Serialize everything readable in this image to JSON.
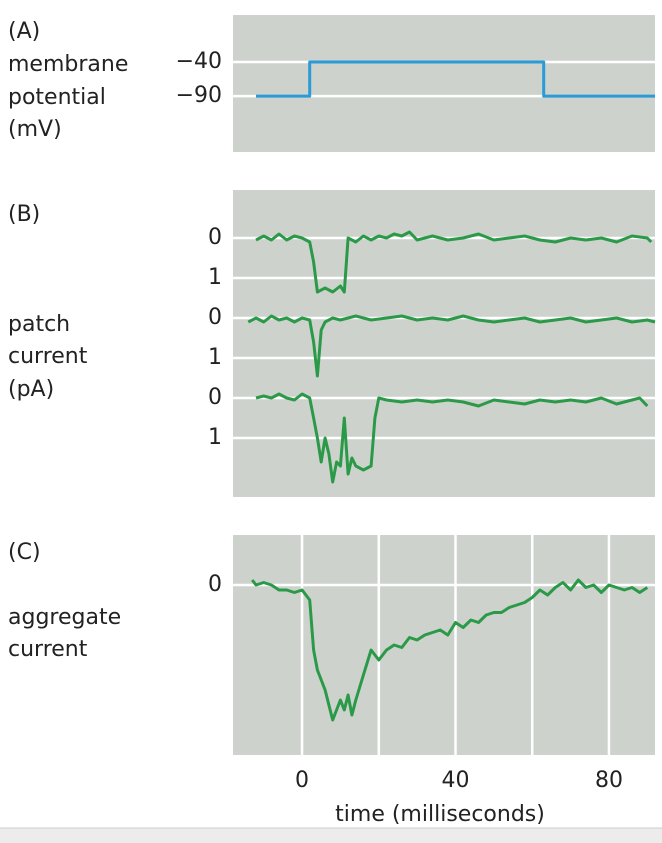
{
  "chart_data": [
    {
      "type": "line",
      "panel": "(A)",
      "ylabel": [
        "membrane",
        "potential",
        "(mV)"
      ],
      "xlim": [
        -18,
        92
      ],
      "ylim": [
        -172,
        29
      ],
      "yticks": [
        {
          "value": -40,
          "label": "−40"
        },
        {
          "value": -90,
          "label": "−90"
        }
      ],
      "grid": true,
      "series": [
        {
          "color": "#2a9bd6",
          "x": [
            -12,
            2,
            2,
            63,
            63,
            92
          ],
          "values": [
            -90,
            -90,
            -40,
            -40,
            -90,
            -90
          ]
        }
      ]
    },
    {
      "type": "line",
      "panel": "(B)",
      "ylabel": [
        "patch",
        "current",
        "(pA)"
      ],
      "xlim": [
        -18,
        92
      ],
      "y_inverted": true,
      "grid": true,
      "series": [
        {
          "color": "#2b9a48",
          "ylim": [
            -1.2,
            1.5
          ],
          "yticks": [
            0,
            1
          ],
          "x": [
            -12,
            -10,
            -8,
            -6,
            -4,
            -2,
            0,
            1,
            2,
            3,
            4,
            6,
            8,
            10,
            11,
            12,
            14,
            16,
            18,
            20,
            22,
            24,
            26,
            28,
            30,
            34,
            38,
            42,
            46,
            50,
            54,
            58,
            62,
            66,
            70,
            74,
            78,
            82,
            86,
            90,
            91
          ],
          "values": [
            0.05,
            -0.05,
            0.05,
            -0.1,
            0.05,
            -0.05,
            0,
            0.05,
            0.1,
            0.6,
            1.35,
            1.25,
            1.35,
            1.2,
            1.35,
            0,
            0.1,
            -0.05,
            0.05,
            -0.05,
            0,
            -0.1,
            -0.05,
            -0.15,
            0.05,
            -0.05,
            0.05,
            0,
            -0.1,
            0.05,
            0,
            -0.05,
            0.05,
            0.1,
            0,
            0.05,
            0,
            0.1,
            -0.05,
            0,
            0.1
          ]
        },
        {
          "color": "#2b9a48",
          "ylim": [
            -0.5,
            1.5
          ],
          "yticks": [
            0,
            1
          ],
          "x": [
            -14,
            -12,
            -10,
            -8,
            -6,
            -4,
            -2,
            0,
            2,
            3,
            4,
            5,
            6,
            8,
            10,
            14,
            18,
            22,
            26,
            30,
            34,
            38,
            42,
            46,
            50,
            54,
            58,
            62,
            66,
            70,
            74,
            78,
            82,
            86,
            90,
            92
          ],
          "values": [
            0.1,
            0,
            0.1,
            -0.05,
            0.05,
            0,
            0.1,
            0,
            0.05,
            0.6,
            1.45,
            0.3,
            0.1,
            0,
            0.05,
            -0.05,
            0.05,
            0,
            -0.05,
            0.05,
            0,
            0.05,
            -0.05,
            0.05,
            0.1,
            0.05,
            0,
            0.1,
            0.05,
            0,
            0.1,
            0.05,
            0,
            0.1,
            0.05,
            0.1
          ]
        },
        {
          "color": "#2b9a48",
          "ylim": [
            -0.5,
            2.475
          ],
          "yticks": [
            0,
            1
          ],
          "x": [
            -12,
            -10,
            -8,
            -6,
            -4,
            -2,
            0,
            2,
            3,
            4,
            5,
            6,
            7,
            8,
            9,
            10,
            11,
            12,
            13,
            14,
            16,
            18,
            19,
            20,
            22,
            26,
            30,
            34,
            38,
            42,
            46,
            50,
            54,
            58,
            62,
            66,
            70,
            74,
            78,
            82,
            86,
            88,
            90
          ],
          "values": [
            0,
            -0.05,
            0,
            -0.1,
            0,
            0.05,
            -0.1,
            0,
            0.5,
            1.0,
            1.6,
            1.0,
            1.4,
            2.1,
            1.6,
            1.7,
            0.5,
            1.9,
            1.5,
            1.7,
            1.8,
            1.7,
            0.5,
            0,
            0.05,
            0.1,
            0.05,
            0.1,
            0.05,
            0.1,
            0.2,
            0.05,
            0.1,
            0.15,
            0.05,
            0.1,
            0.05,
            0.1,
            0,
            0.15,
            0.05,
            0,
            0.2
          ]
        }
      ]
    },
    {
      "type": "line",
      "panel": "(C)",
      "ylabel": [
        "aggregate",
        "current"
      ],
      "xlabel": "time (milliseconds)",
      "xlim": [
        -18,
        92
      ],
      "ylim": [
        -1,
        3.4
      ],
      "y_inverted": true,
      "yticks": [
        0
      ],
      "xticks": [
        0,
        40,
        80
      ],
      "xgrid": [
        0,
        20,
        40,
        60,
        80
      ],
      "grid": true,
      "series": [
        {
          "color": "#2b9a48",
          "x": [
            -13,
            -12,
            -10,
            -8,
            -6,
            -4,
            -2,
            0,
            2,
            3,
            4,
            6,
            8,
            10,
            11,
            12,
            13,
            14,
            16,
            18,
            20,
            22,
            24,
            26,
            28,
            30,
            32,
            34,
            36,
            38,
            40,
            42,
            44,
            46,
            48,
            50,
            52,
            54,
            56,
            58,
            60,
            62,
            64,
            66,
            68,
            70,
            72,
            74,
            76,
            78,
            80,
            82,
            84,
            86,
            88,
            90
          ],
          "values": [
            -0.1,
            0,
            -0.05,
            0,
            0.1,
            0.1,
            0.15,
            0.1,
            0.3,
            1.3,
            1.7,
            2.1,
            2.7,
            2.3,
            2.5,
            2.2,
            2.6,
            2.3,
            1.8,
            1.3,
            1.5,
            1.3,
            1.2,
            1.25,
            1.05,
            1.1,
            1.0,
            0.95,
            0.9,
            1.0,
            0.75,
            0.85,
            0.7,
            0.75,
            0.6,
            0.55,
            0.55,
            0.45,
            0.4,
            0.35,
            0.25,
            0.1,
            0.2,
            0.05,
            -0.05,
            0.1,
            -0.1,
            0.05,
            0,
            0.15,
            0,
            0.05,
            0.1,
            0.05,
            0.15,
            0.05
          ]
        }
      ]
    }
  ]
}
